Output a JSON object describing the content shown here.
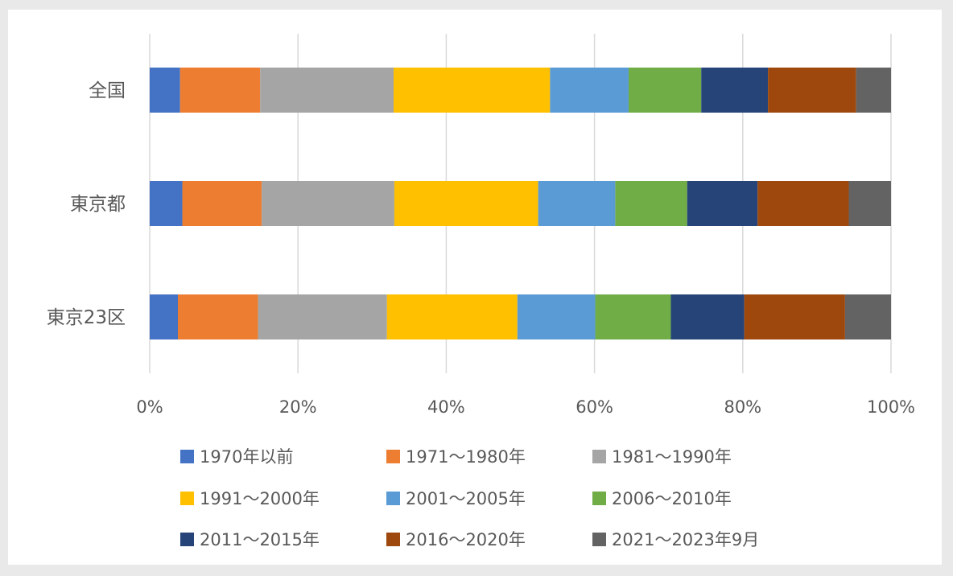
{
  "chart_data": {
    "type": "bar",
    "orientation": "horizontal",
    "stacked": "percent",
    "title": "",
    "xlabel": "",
    "ylabel": "",
    "xlim": [
      0,
      100
    ],
    "x_ticks": [
      "0%",
      "20%",
      "40%",
      "60%",
      "80%",
      "100%"
    ],
    "grid": true,
    "legend_position": "bottom",
    "categories": [
      "全国",
      "東京都",
      "東京23区"
    ],
    "series": [
      {
        "name": "1970年以前",
        "color": "#4472c4",
        "values": [
          4.1,
          4.4,
          3.8
        ]
      },
      {
        "name": "1971〜1980年",
        "color": "#ed7d31",
        "values": [
          10.8,
          10.7,
          10.8
        ]
      },
      {
        "name": "1981〜1990年",
        "color": "#a5a5a5",
        "values": [
          18.0,
          17.9,
          17.4
        ]
      },
      {
        "name": "1991〜2000年",
        "color": "#ffc000",
        "values": [
          21.1,
          19.4,
          17.6
        ]
      },
      {
        "name": "2001〜2005年",
        "color": "#5b9bd5",
        "values": [
          10.6,
          10.4,
          10.5
        ]
      },
      {
        "name": "2006〜2010年",
        "color": "#70ad47",
        "values": [
          9.8,
          9.7,
          10.2
        ]
      },
      {
        "name": "2011〜2015年",
        "color": "#264478",
        "values": [
          9.0,
          9.5,
          9.9
        ]
      },
      {
        "name": "2016〜2020年",
        "color": "#9e480e",
        "values": [
          11.9,
          12.3,
          13.6
        ]
      },
      {
        "name": "2021〜2023年9月",
        "color": "#636363",
        "values": [
          4.7,
          5.7,
          6.2
        ]
      }
    ]
  }
}
